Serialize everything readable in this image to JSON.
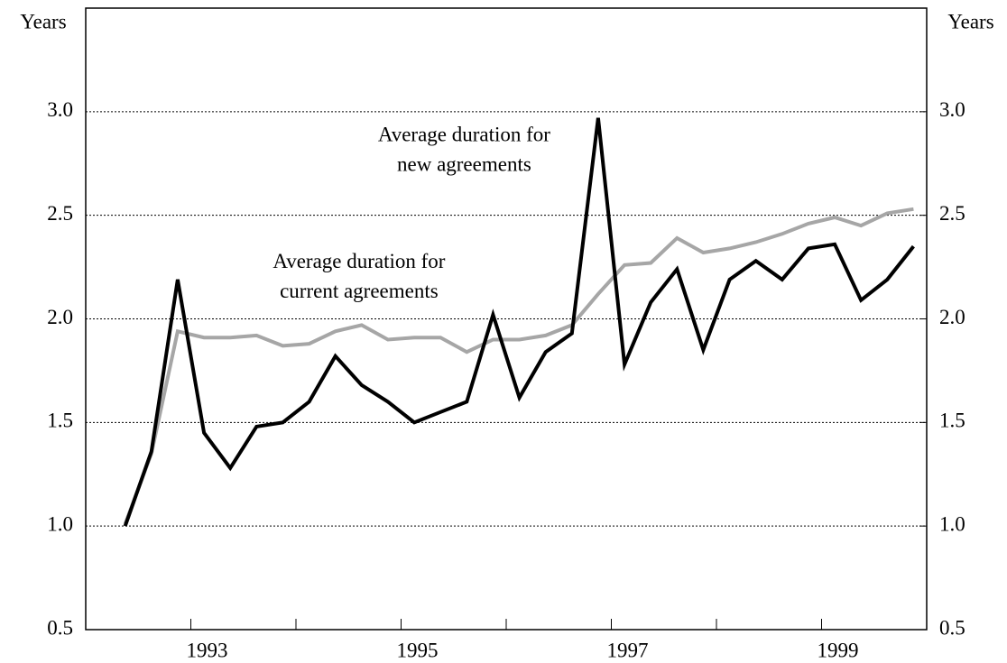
{
  "chart_data": {
    "type": "line",
    "y_label": "Years",
    "y2_label": "Years",
    "x": [
      1992.375,
      1992.625,
      1992.875,
      1993.125,
      1993.375,
      1993.625,
      1993.875,
      1994.125,
      1994.375,
      1994.625,
      1994.875,
      1995.125,
      1995.375,
      1995.625,
      1995.875,
      1996.125,
      1996.375,
      1996.625,
      1996.875,
      1997.125,
      1997.375,
      1997.625,
      1997.875,
      1998.125,
      1998.375,
      1998.625,
      1998.875,
      1999.125,
      1999.375,
      1999.625,
      1999.875
    ],
    "series": [
      {
        "name": "Average duration for new agreements",
        "color": "#000000",
        "values": [
          1.0,
          1.36,
          2.19,
          1.45,
          1.28,
          1.48,
          1.5,
          1.6,
          1.82,
          1.68,
          1.6,
          1.5,
          1.55,
          1.6,
          2.02,
          1.62,
          1.84,
          1.93,
          2.97,
          1.78,
          2.08,
          2.24,
          1.85,
          2.19,
          2.28,
          2.19,
          2.34,
          2.36,
          2.09,
          2.19,
          2.35
        ]
      },
      {
        "name": "Average duration for current agreements",
        "color": "#a6a6a6",
        "values": [
          1.01,
          1.35,
          1.94,
          1.91,
          1.91,
          1.92,
          1.87,
          1.88,
          1.94,
          1.97,
          1.9,
          1.91,
          1.91,
          1.84,
          1.9,
          1.9,
          1.92,
          1.97,
          2.12,
          2.26,
          2.27,
          2.39,
          2.32,
          2.34,
          2.37,
          2.41,
          2.46,
          2.49,
          2.45,
          2.51,
          2.53
        ]
      }
    ],
    "annotations": [
      {
        "lines": [
          "Average duration for",
          "new agreements"
        ],
        "x": 1995.6,
        "y": 2.88
      },
      {
        "lines": [
          "Average duration for",
          "current agreements"
        ],
        "x": 1994.6,
        "y": 2.27
      }
    ],
    "xlim": [
      1992,
      2000
    ],
    "xticks": [
      1993,
      1995,
      1997,
      1999
    ],
    "minor_xticks": [
      1994,
      1996,
      1998
    ],
    "ylim": [
      0.5,
      3.5
    ],
    "yticks": [
      0.5,
      {
        "value": 1,
        "label": "1.0"
      },
      1.5,
      {
        "value": 2,
        "label": "2.0"
      },
      2.5,
      {
        "value": 3,
        "label": "3.0"
      }
    ],
    "y2lim": [
      0.5,
      3.5
    ],
    "y2ticks": [
      0.5,
      {
        "value": 1,
        "label": "1.0"
      },
      1.5,
      {
        "value": 2,
        "label": "2.0"
      },
      2.5,
      {
        "value": 3,
        "label": "3.0"
      }
    ],
    "grid": true
  }
}
